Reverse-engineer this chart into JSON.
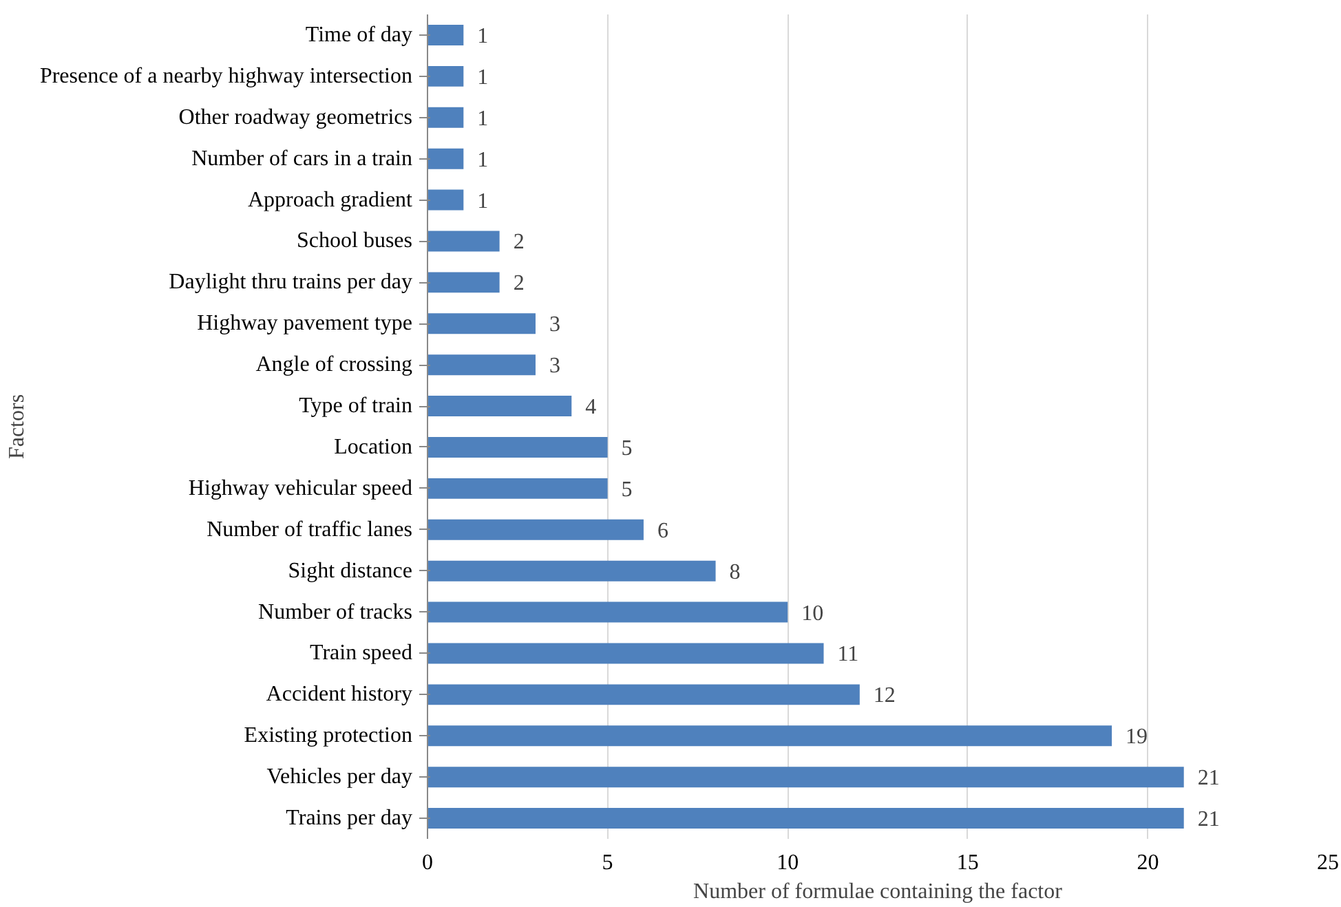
{
  "chart_data": {
    "type": "bar",
    "orientation": "horizontal",
    "xlabel": "Number of formulae containing the factor",
    "ylabel": "Factors",
    "categories": [
      "Time of day",
      "Presence of a nearby highway intersection",
      "Other roadway geometrics",
      "Number of cars in a train",
      "Approach gradient",
      "School buses",
      "Daylight thru trains per day",
      "Highway pavement type",
      "Angle of crossing",
      "Type of train",
      "Location",
      "Highway vehicular speed",
      "Number of traffic lanes",
      "Sight distance",
      "Number of tracks",
      "Train speed",
      "Accident history",
      "Existing protection",
      "Vehicles per day",
      "Trains per day"
    ],
    "values": [
      1,
      1,
      1,
      1,
      1,
      2,
      2,
      3,
      3,
      4,
      5,
      5,
      6,
      8,
      10,
      11,
      12,
      19,
      21,
      21
    ],
    "color": "#4f81bd",
    "xlim": [
      0,
      25
    ],
    "xticks": [
      0,
      5,
      10,
      15,
      20,
      25
    ],
    "grid": "x",
    "data_labels": true
  }
}
